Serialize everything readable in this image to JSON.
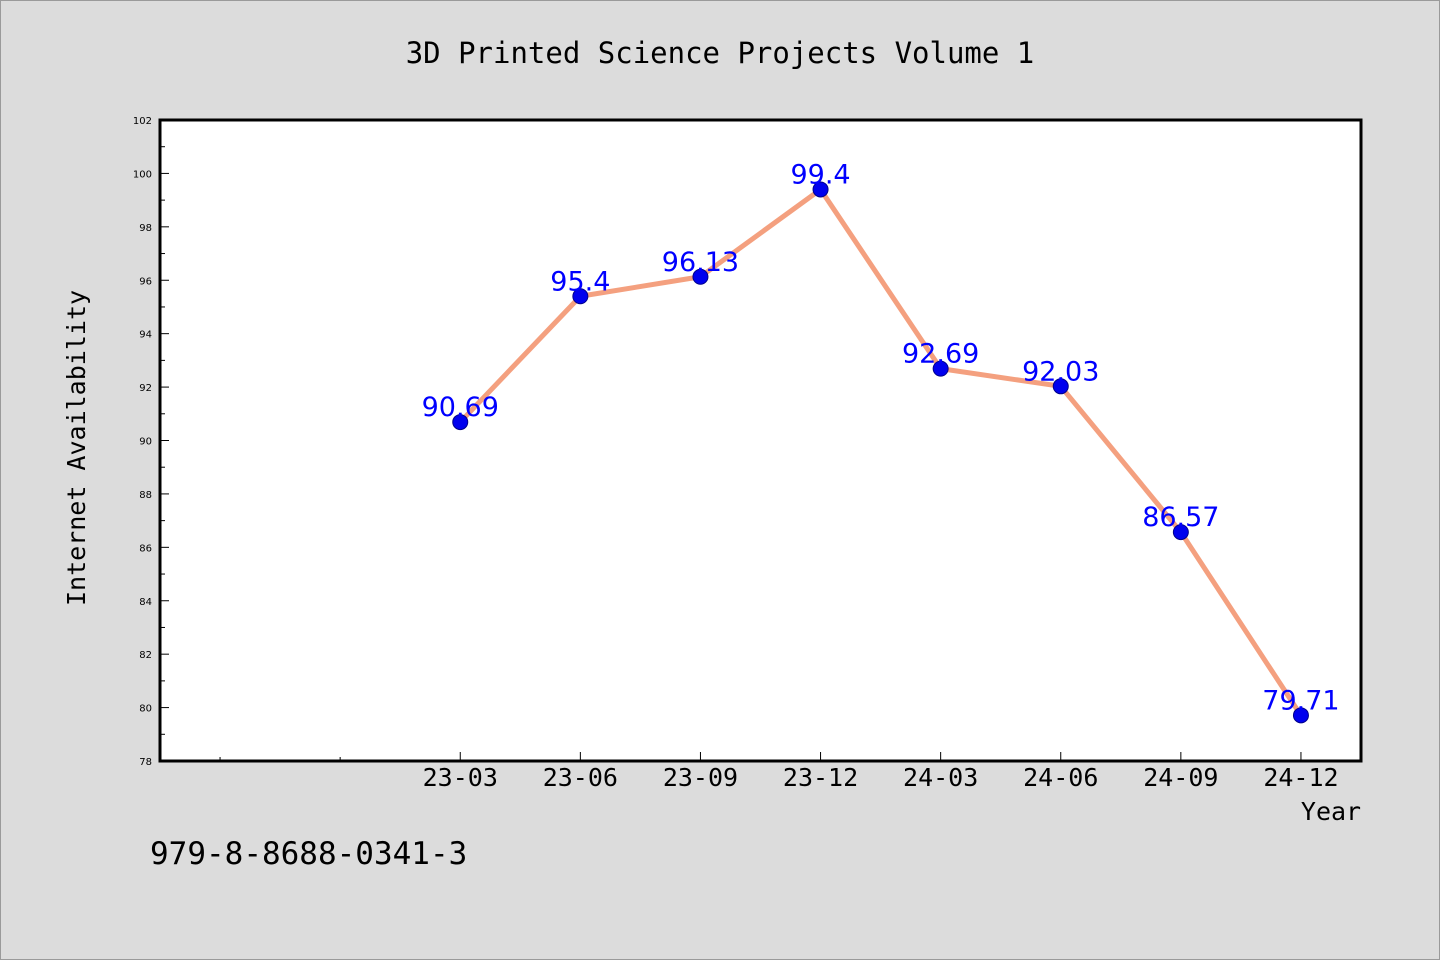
{
  "chart_data": {
    "type": "line",
    "title": "3D Printed Science Projects Volume 1",
    "xlabel": "Year",
    "ylabel": "Internet Availability",
    "categories": [
      "23-03",
      "23-06",
      "23-09",
      "23-12",
      "24-03",
      "24-06",
      "24-09",
      "24-12"
    ],
    "series": [
      {
        "values": [
          90.69,
          95.4,
          96.13,
          99.4,
          92.69,
          92.03,
          86.57,
          79.71
        ],
        "line_color": "#f4a07f",
        "marker_color": "#0000ee"
      }
    ],
    "data_labels": [
      "90.69",
      "95.4",
      "96.13",
      "99.4",
      "92.69",
      "92.03",
      "86.57",
      "79.71"
    ],
    "ylim": [
      78,
      102
    ],
    "y_ticks": [
      "78",
      "80",
      "82",
      "84",
      "86",
      "88",
      "90",
      "92",
      "94",
      "96",
      "98",
      "100",
      "102"
    ],
    "grid": false,
    "legend": "none",
    "label_color": "#0000ff"
  },
  "footnote": "979-8-8688-0341-3",
  "colors": {
    "background": "#dcdcdc",
    "plot_area": "#ffffff"
  }
}
